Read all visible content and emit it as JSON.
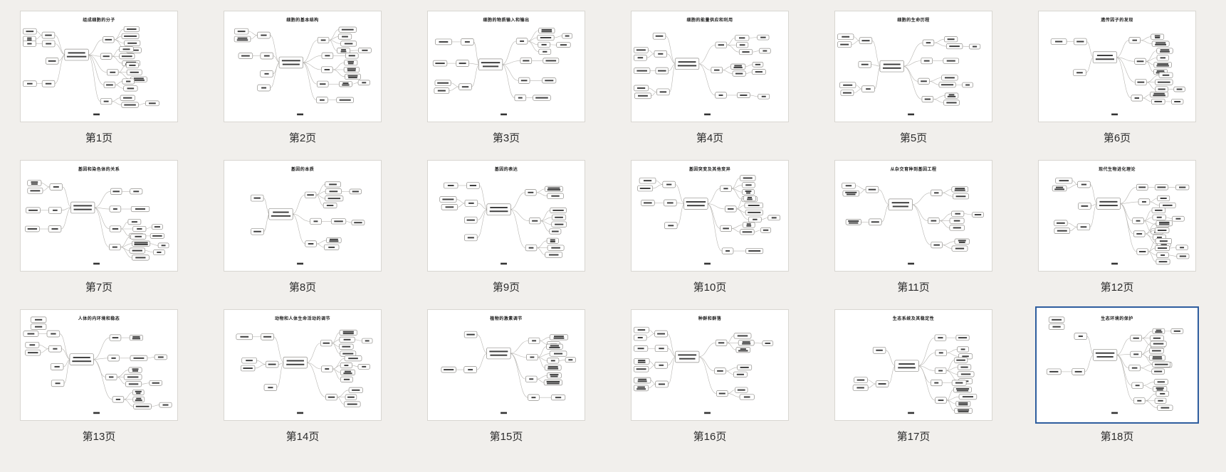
{
  "app": {
    "view": "page-thumbnail-grid",
    "background_color": "#f1efec",
    "selection_color": "#2e5d9e",
    "page_count": 18,
    "selected_page": 18
  },
  "pages": [
    {
      "label": "第1页",
      "title": "组成细胞的分子",
      "selected": false
    },
    {
      "label": "第2页",
      "title": "细胞的基本结构",
      "selected": false
    },
    {
      "label": "第3页",
      "title": "细胞的物质输入和输出",
      "selected": false
    },
    {
      "label": "第4页",
      "title": "细胞的能量供应和利用",
      "selected": false
    },
    {
      "label": "第5页",
      "title": "细胞的生命历程",
      "selected": false
    },
    {
      "label": "第6页",
      "title": "遗传因子的发现",
      "selected": false
    },
    {
      "label": "第7页",
      "title": "基因和染色体的关系",
      "selected": false
    },
    {
      "label": "第8页",
      "title": "基因的本质",
      "selected": false
    },
    {
      "label": "第9页",
      "title": "基因的表达",
      "selected": false
    },
    {
      "label": "第10页",
      "title": "基因突变及其他变异",
      "selected": false
    },
    {
      "label": "第11页",
      "title": "从杂交育种到基因工程",
      "selected": false
    },
    {
      "label": "第12页",
      "title": "现代生物进化理论",
      "selected": false
    },
    {
      "label": "第13页",
      "title": "人体的内环境和稳态",
      "selected": false
    },
    {
      "label": "第14页",
      "title": "动物和人体生命活动的调节",
      "selected": false
    },
    {
      "label": "第15页",
      "title": "植物的激素调节",
      "selected": false
    },
    {
      "label": "第16页",
      "title": "种群和群落",
      "selected": false
    },
    {
      "label": "第17页",
      "title": "生态系统及其稳定性",
      "selected": false
    },
    {
      "label": "第18页",
      "title": "生态环境的保护",
      "selected": true
    }
  ]
}
